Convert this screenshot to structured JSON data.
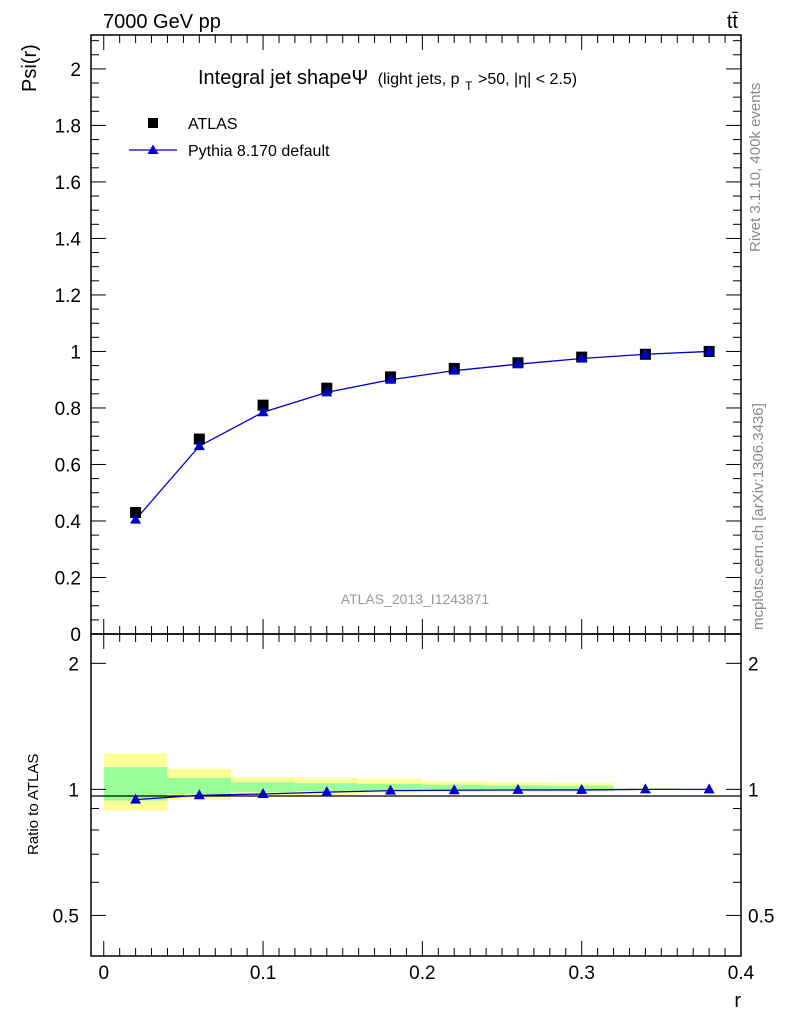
{
  "header": {
    "energy_label": "7000 GeV pp",
    "process_label": "tt̄",
    "side_label_top": "Rivet 3.1.10,  400k events",
    "side_label_bottom": "mcplots.cern.ch [arXiv:1306.3436]",
    "analysis_id": "ATLAS_2013_I1243871"
  },
  "chart_data": [
    {
      "type": "scatter",
      "panel": "main",
      "title": "Integral jet shapeΨ",
      "title_suffix": "(light jets, p",
      "title_sub": "T",
      "title_tail": ">50, |η| < 2.5)",
      "ylabel": "Psi(r)",
      "xlim": [
        -0.008,
        0.4
      ],
      "ylim": [
        0,
        2.12
      ],
      "y_ticks": [
        "0",
        "0.2",
        "0.4",
        "0.6",
        "0.8",
        "1",
        "1.2",
        "1.4",
        "1.6",
        "1.8",
        "2"
      ],
      "legend_position": "top-left",
      "x": [
        0.02,
        0.06,
        0.1,
        0.14,
        0.18,
        0.22,
        0.26,
        0.3,
        0.34,
        0.38
      ],
      "series": [
        {
          "name": "ATLAS",
          "marker": "square",
          "color": "#000000",
          "values": [
            0.43,
            0.69,
            0.81,
            0.87,
            0.91,
            0.94,
            0.96,
            0.98,
            0.99,
            1.0
          ]
        },
        {
          "name": "Pythia 8.170 default",
          "marker": "triangle",
          "color": "#0000cc",
          "values": [
            0.405,
            0.665,
            0.785,
            0.855,
            0.9,
            0.932,
            0.955,
            0.975,
            0.99,
            1.0
          ]
        }
      ]
    },
    {
      "type": "line",
      "panel": "ratio",
      "ylabel": "Ratio to ATLAS",
      "xlabel": "r",
      "xlim": [
        -0.008,
        0.4
      ],
      "ylim": [
        0.4,
        2.35
      ],
      "log_y": true,
      "y_ticks": [
        "0.5",
        "1",
        "2"
      ],
      "x_ticks": [
        "0",
        "0.1",
        "0.2",
        "0.3",
        "0.4"
      ],
      "bands": [
        {
          "x0": 0.0,
          "x1": 0.04,
          "yellow": [
            0.89,
            1.22
          ],
          "green": [
            0.94,
            1.13
          ]
        },
        {
          "x0": 0.04,
          "x1": 0.08,
          "yellow": [
            0.945,
            1.12
          ],
          "green": [
            0.975,
            1.065
          ]
        },
        {
          "x0": 0.08,
          "x1": 0.12,
          "yellow": [
            0.96,
            1.07
          ],
          "green": [
            0.985,
            1.04
          ]
        },
        {
          "x0": 0.12,
          "x1": 0.16,
          "yellow": [
            0.965,
            1.065
          ],
          "green": [
            0.99,
            1.035
          ]
        },
        {
          "x0": 0.16,
          "x1": 0.2,
          "yellow": [
            0.98,
            1.06
          ],
          "green": [
            0.99,
            1.03
          ]
        },
        {
          "x0": 0.2,
          "x1": 0.24,
          "yellow": [
            0.985,
            1.045
          ],
          "green": [
            0.993,
            1.025
          ]
        },
        {
          "x0": 0.24,
          "x1": 0.28,
          "yellow": [
            0.985,
            1.04
          ],
          "green": [
            0.993,
            1.022
          ]
        },
        {
          "x0": 0.28,
          "x1": 0.32,
          "yellow": [
            0.985,
            1.035
          ],
          "green": [
            0.993,
            1.02
          ]
        },
        {
          "x0": 0.32,
          "x1": 0.36,
          "yellow": [
            0.995,
            1.006
          ],
          "green": [
            0.998,
            1.003
          ]
        },
        {
          "x0": 0.36,
          "x1": 0.4,
          "yellow": [
            0.999,
            1.001
          ],
          "green": [
            0.9995,
            1.0005
          ]
        }
      ],
      "x": [
        0.02,
        0.06,
        0.1,
        0.14,
        0.18,
        0.22,
        0.26,
        0.3,
        0.34,
        0.38
      ],
      "series": [
        {
          "name": "Pythia 8.170 default",
          "marker": "triangle",
          "color": "#0000cc",
          "values": [
            0.945,
            0.968,
            0.975,
            0.985,
            0.993,
            0.995,
            0.997,
            0.997,
            1.0,
            1.0
          ]
        }
      ],
      "colors": {
        "band_yellow": "#ffff99",
        "band_green": "#99ff99",
        "reference_line": "#000000"
      }
    }
  ]
}
